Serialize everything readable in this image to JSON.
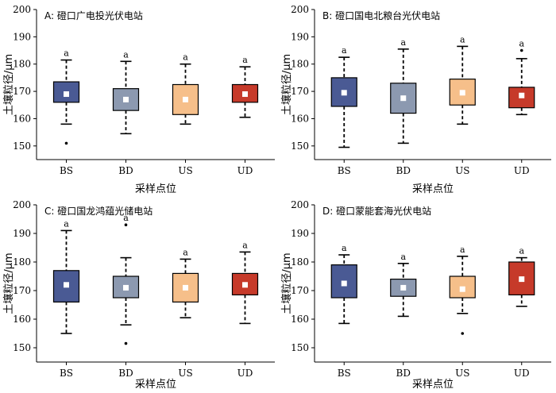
{
  "chart_data": [
    {
      "type": "box",
      "title": "A: 磴口广电投光伏电站",
      "xlabel": "采样点位",
      "ylabel": "土壤粒径/μm",
      "ylim": [
        145,
        200
      ],
      "yticks": [
        150,
        160,
        170,
        180,
        190,
        200
      ],
      "categories": [
        "BS",
        "BD",
        "US",
        "UD"
      ],
      "colors": [
        "#4a5a94",
        "#8c99b0",
        "#f6bf8a",
        "#c63a2a"
      ],
      "boxes": [
        {
          "min": 158,
          "q1": 166,
          "median": 169,
          "mean": 169,
          "q3": 173.5,
          "max": 181.5,
          "outliers": [
            151
          ],
          "label": "a"
        },
        {
          "min": 154.5,
          "q1": 163,
          "median": 167,
          "mean": 167,
          "q3": 171,
          "max": 181,
          "outliers": [],
          "label": "a"
        },
        {
          "min": 158,
          "q1": 161.5,
          "median": 167,
          "mean": 167,
          "q3": 172.5,
          "max": 180,
          "outliers": [],
          "label": "a"
        },
        {
          "min": 160.5,
          "q1": 166,
          "median": 169,
          "mean": 169,
          "q3": 172.5,
          "max": 179,
          "outliers": [],
          "label": "a"
        }
      ]
    },
    {
      "type": "box",
      "title": "B: 磴口国电北粮台光伏电站",
      "xlabel": "采样点位",
      "ylabel": "土壤粒径/μm",
      "ylim": [
        145,
        200
      ],
      "yticks": [
        150,
        160,
        170,
        180,
        190,
        200
      ],
      "categories": [
        "BS",
        "BD",
        "US",
        "UD"
      ],
      "colors": [
        "#4a5a94",
        "#8c99b0",
        "#f6bf8a",
        "#c63a2a"
      ],
      "boxes": [
        {
          "min": 149.5,
          "q1": 164.5,
          "median": 169.5,
          "mean": 169.5,
          "q3": 175,
          "max": 182.5,
          "outliers": [],
          "label": "a"
        },
        {
          "min": 151,
          "q1": 162,
          "median": 167.5,
          "mean": 167.5,
          "q3": 173,
          "max": 185.5,
          "outliers": [],
          "label": "a"
        },
        {
          "min": 158,
          "q1": 165,
          "median": 169.5,
          "mean": 169.5,
          "q3": 174.5,
          "max": 186.5,
          "outliers": [],
          "label": "a"
        },
        {
          "min": 161.5,
          "q1": 164,
          "median": 168.5,
          "mean": 168.5,
          "q3": 171.5,
          "max": 182,
          "outliers": [
            185
          ],
          "label": "a"
        }
      ]
    },
    {
      "type": "box",
      "title": "C: 磴口国龙鸿蕴光储电站",
      "xlabel": "采样点位",
      "ylabel": "土壤粒径/μm",
      "ylim": [
        145,
        200
      ],
      "yticks": [
        150,
        160,
        170,
        180,
        190,
        200
      ],
      "categories": [
        "BS",
        "BD",
        "US",
        "UD"
      ],
      "colors": [
        "#4a5a94",
        "#8c99b0",
        "#f6bf8a",
        "#c63a2a"
      ],
      "boxes": [
        {
          "min": 155,
          "q1": 166,
          "median": 172,
          "mean": 172,
          "q3": 177,
          "max": 191,
          "outliers": [],
          "label": "a"
        },
        {
          "min": 158,
          "q1": 167.5,
          "median": 171,
          "mean": 171,
          "q3": 175,
          "max": 181.5,
          "outliers": [
            193,
            151.5
          ],
          "label": "a"
        },
        {
          "min": 160.5,
          "q1": 166,
          "median": 171,
          "mean": 171,
          "q3": 176,
          "max": 181,
          "outliers": [],
          "label": "a"
        },
        {
          "min": 158.5,
          "q1": 168.5,
          "median": 172,
          "mean": 172,
          "q3": 176,
          "max": 183.5,
          "outliers": [],
          "label": "a"
        }
      ]
    },
    {
      "type": "box",
      "title": "D: 磴口蒙能套海光伏电站",
      "xlabel": "采样点位",
      "ylabel": "土壤粒径/μm",
      "ylim": [
        145,
        200
      ],
      "yticks": [
        150,
        160,
        170,
        180,
        190,
        200
      ],
      "categories": [
        "BS",
        "BD",
        "US",
        "UD"
      ],
      "colors": [
        "#4a5a94",
        "#8c99b0",
        "#f6bf8a",
        "#c63a2a"
      ],
      "boxes": [
        {
          "min": 158.5,
          "q1": 167.5,
          "median": 172.5,
          "mean": 172.5,
          "q3": 179,
          "max": 182.5,
          "outliers": [],
          "label": "a"
        },
        {
          "min": 161,
          "q1": 168,
          "median": 171,
          "mean": 171,
          "q3": 174,
          "max": 179.5,
          "outliers": [],
          "label": "a"
        },
        {
          "min": 162,
          "q1": 167.5,
          "median": 170.5,
          "mean": 170.5,
          "q3": 175,
          "max": 182,
          "outliers": [
            155
          ],
          "label": "a"
        },
        {
          "min": 164.5,
          "q1": 168.5,
          "median": 174,
          "mean": 174,
          "q3": 180,
          "max": 181.5,
          "outliers": [],
          "label": "a"
        }
      ]
    }
  ]
}
